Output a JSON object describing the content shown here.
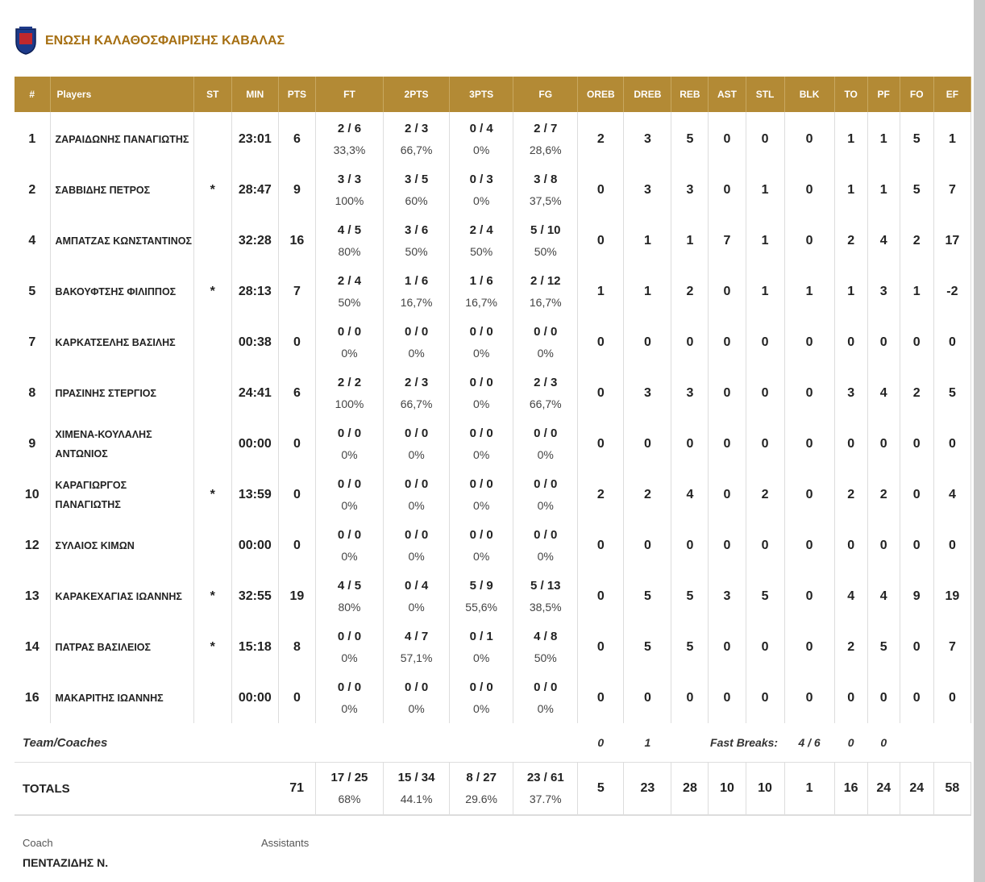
{
  "header": {
    "title": "ΕΝΩΣΗ ΚΑΛΑΘΟΣΦΑΙΡΙΣΗΣ ΚΑΒΑΛΑΣ"
  },
  "table": {
    "columns": [
      "#",
      "Players",
      "ST",
      "MIN",
      "PTS",
      "FT",
      "2PTS",
      "3PTS",
      "FG",
      "OREB",
      "DREB",
      "REB",
      "AST",
      "STL",
      "BLK",
      "TO",
      "PF",
      "FO",
      "EF"
    ],
    "rows": [
      [
        1,
        "ΖΑΡΑΙΔΩΝΗΣ ΠΑΝΑΓΙΩΤΗΣ",
        null,
        "23:01",
        6,
        {
          "ratio": "2 / 6",
          "pct": "33,3%"
        },
        {
          "ratio": "2 / 3",
          "pct": "66,7%"
        },
        {
          "ratio": "0 / 4",
          "pct": "0%"
        },
        {
          "ratio": "2 / 7",
          "pct": "28,6%"
        },
        2,
        3,
        5,
        0,
        0,
        0,
        1,
        1,
        5,
        1
      ],
      [
        2,
        "ΣΑΒΒΙΔΗΣ ΠΕΤΡΟΣ",
        "*",
        "28:47",
        9,
        {
          "ratio": "3 / 3",
          "pct": "100%"
        },
        {
          "ratio": "3 / 5",
          "pct": "60%"
        },
        {
          "ratio": "0 / 3",
          "pct": "0%"
        },
        {
          "ratio": "3 / 8",
          "pct": "37,5%"
        },
        0,
        3,
        3,
        0,
        1,
        0,
        1,
        1,
        5,
        7
      ],
      [
        4,
        "ΑΜΠΑΤΖΑΣ ΚΩΝΣΤΑΝΤΙΝΟΣ",
        null,
        "32:28",
        16,
        {
          "ratio": "4 / 5",
          "pct": "80%"
        },
        {
          "ratio": "3 / 6",
          "pct": "50%"
        },
        {
          "ratio": "2 / 4",
          "pct": "50%"
        },
        {
          "ratio": "5 / 10",
          "pct": "50%"
        },
        0,
        1,
        1,
        7,
        1,
        0,
        2,
        4,
        2,
        17
      ],
      [
        5,
        "ΒΑΚΟΥΦΤΣΗΣ ΦΙΛΙΠΠΟΣ",
        "*",
        "28:13",
        7,
        {
          "ratio": "2 / 4",
          "pct": "50%"
        },
        {
          "ratio": "1 / 6",
          "pct": "16,7%"
        },
        {
          "ratio": "1 / 6",
          "pct": "16,7%"
        },
        {
          "ratio": "2 / 12",
          "pct": "16,7%"
        },
        1,
        1,
        2,
        0,
        1,
        1,
        1,
        3,
        1,
        -2
      ],
      [
        7,
        "ΚΑΡΚΑΤΣΕΛΗΣ ΒΑΣΙΛΗΣ",
        null,
        "00:38",
        0,
        {
          "ratio": "0 / 0",
          "pct": "0%"
        },
        {
          "ratio": "0 / 0",
          "pct": "0%"
        },
        {
          "ratio": "0 / 0",
          "pct": "0%"
        },
        {
          "ratio": "0 / 0",
          "pct": "0%"
        },
        0,
        0,
        0,
        0,
        0,
        0,
        0,
        0,
        0,
        0
      ],
      [
        8,
        "ΠΡΑΣΙΝΗΣ ΣΤΕΡΓΙΟΣ",
        null,
        "24:41",
        6,
        {
          "ratio": "2 / 2",
          "pct": "100%"
        },
        {
          "ratio": "2 / 3",
          "pct": "66,7%"
        },
        {
          "ratio": "0 / 0",
          "pct": "0%"
        },
        {
          "ratio": "2 / 3",
          "pct": "66,7%"
        },
        0,
        3,
        3,
        0,
        0,
        0,
        3,
        4,
        2,
        5
      ],
      [
        9,
        "ΧΙΜΕΝΑ-ΚΟΥΛΑΛΗΣ ΑΝΤΩΝΙΟΣ",
        null,
        "00:00",
        0,
        {
          "ratio": "0 / 0",
          "pct": "0%"
        },
        {
          "ratio": "0 / 0",
          "pct": "0%"
        },
        {
          "ratio": "0 / 0",
          "pct": "0%"
        },
        {
          "ratio": "0 / 0",
          "pct": "0%"
        },
        0,
        0,
        0,
        0,
        0,
        0,
        0,
        0,
        0,
        0
      ],
      [
        10,
        "ΚΑΡΑΓΙΩΡΓΟΣ ΠΑΝΑΓΙΩΤΗΣ",
        "*",
        "13:59",
        0,
        {
          "ratio": "0 / 0",
          "pct": "0%"
        },
        {
          "ratio": "0 / 0",
          "pct": "0%"
        },
        {
          "ratio": "0 / 0",
          "pct": "0%"
        },
        {
          "ratio": "0 / 0",
          "pct": "0%"
        },
        2,
        2,
        4,
        0,
        2,
        0,
        2,
        2,
        0,
        4
      ],
      [
        12,
        "ΣΥΛΑΙΟΣ ΚΙΜΩΝ",
        null,
        "00:00",
        0,
        {
          "ratio": "0 / 0",
          "pct": "0%"
        },
        {
          "ratio": "0 / 0",
          "pct": "0%"
        },
        {
          "ratio": "0 / 0",
          "pct": "0%"
        },
        {
          "ratio": "0 / 0",
          "pct": "0%"
        },
        0,
        0,
        0,
        0,
        0,
        0,
        0,
        0,
        0,
        0
      ],
      [
        13,
        "ΚΑΡΑΚΕΧΑΓΙΑΣ ΙΩΑΝΝΗΣ",
        "*",
        "32:55",
        19,
        {
          "ratio": "4 / 5",
          "pct": "80%"
        },
        {
          "ratio": "0 / 4",
          "pct": "0%"
        },
        {
          "ratio": "5 / 9",
          "pct": "55,6%"
        },
        {
          "ratio": "5 / 13",
          "pct": "38,5%"
        },
        0,
        5,
        5,
        3,
        5,
        0,
        4,
        4,
        9,
        19
      ],
      [
        14,
        "ΠΑΤΡΑΣ ΒΑΣΙΛΕΙΟΣ",
        "*",
        "15:18",
        8,
        {
          "ratio": "0 / 0",
          "pct": "0%"
        },
        {
          "ratio": "4 / 7",
          "pct": "57,1%"
        },
        {
          "ratio": "0 / 1",
          "pct": "0%"
        },
        {
          "ratio": "4 / 8",
          "pct": "50%"
        },
        0,
        5,
        5,
        0,
        0,
        0,
        2,
        5,
        0,
        7
      ],
      [
        16,
        "ΜΑΚΑΡΙΤΗΣ ΙΩΑΝΝΗΣ",
        null,
        "00:00",
        0,
        {
          "ratio": "0 / 0",
          "pct": "0%"
        },
        {
          "ratio": "0 / 0",
          "pct": "0%"
        },
        {
          "ratio": "0 / 0",
          "pct": "0%"
        },
        {
          "ratio": "0 / 0",
          "pct": "0%"
        },
        0,
        0,
        0,
        0,
        0,
        0,
        0,
        0,
        0,
        0
      ]
    ],
    "team": {
      "label": "Team/Coaches",
      "oreb": 0,
      "dreb": 1,
      "fast_breaks_label": "Fast Breaks:",
      "fast_breaks": "4 / 6",
      "to": 0,
      "pf": 0
    },
    "totals": {
      "label": "TOTALS",
      "cells": [
        71,
        {
          "ratio": "17 / 25",
          "pct": "68%"
        },
        {
          "ratio": "15 / 34",
          "pct": "44.1%"
        },
        {
          "ratio": "8 / 27",
          "pct": "29.6%"
        },
        {
          "ratio": "23 / 61",
          "pct": "37.7%"
        },
        5,
        23,
        28,
        10,
        10,
        1,
        16,
        24,
        24,
        58
      ]
    }
  },
  "footer": {
    "coach_label": "Coach",
    "assistants_label": "Assistants",
    "coach": "ΠΕΝΤΑΖΙΔΗΣ Ν."
  }
}
